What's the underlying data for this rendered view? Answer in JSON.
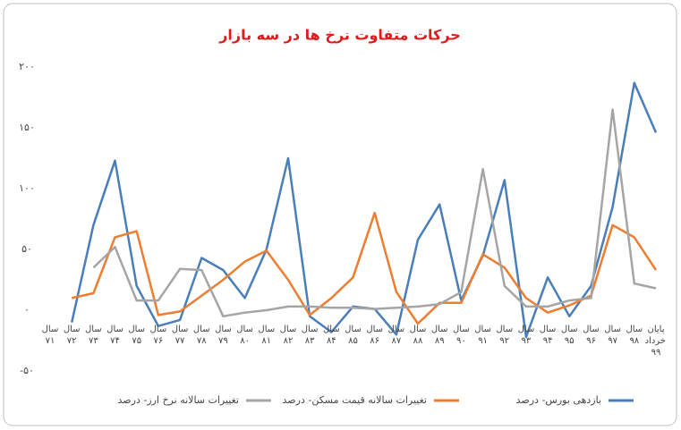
{
  "chart_data": {
    "type": "line",
    "title": "حرکات متفاوت نرخ ها در سه بازار",
    "categories": [
      "سال ۷۱",
      "سال ۷۲",
      "سال ۷۳",
      "سال ۷۴",
      "سال ۷۵",
      "سال ۷۶",
      "سال ۷۷",
      "سال ۷۸",
      "سال ۷۹",
      "سال ۸۰",
      "سال ۸۱",
      "سال ۸۲",
      "سال ۸۳",
      "سال ۸۴",
      "سال ۸۵",
      "سال ۸۶",
      "سال ۸۷",
      "سال ۸۸",
      "سال ۸۹",
      "سال ۹۰",
      "سال ۹۱",
      "سال ۹۲",
      "سال ۹۳",
      "سال ۹۴",
      "سال ۹۵",
      "سال ۹۶",
      "سال ۹۷",
      "سال ۹۸",
      "پایان خرداد ۹۹"
    ],
    "series": [
      {
        "name": "بازدهی بورس- درصد",
        "color": "#4a7ebb",
        "values": [
          null,
          -10,
          70,
          123,
          20,
          -13,
          -8,
          43,
          33,
          10,
          50,
          125,
          -5,
          -18,
          3,
          1,
          -20,
          58,
          87,
          8,
          45,
          107,
          -22,
          27,
          -5,
          20,
          85,
          187,
          146
        ]
      },
      {
        "name": "تغییرات سالانه قیمت مسکن- درصد",
        "color": "#ed7d31",
        "values": [
          null,
          10,
          14,
          60,
          65,
          -4,
          -1,
          12,
          25,
          40,
          49,
          25,
          -4,
          10,
          27,
          80,
          15,
          -11,
          6,
          6,
          46,
          35,
          10,
          -2,
          4,
          12,
          70,
          60,
          33
        ]
      },
      {
        "name": "تغییرات سالانه نرخ ارز- درصد",
        "color": "#a5a5a5",
        "values": [
          null,
          null,
          35,
          52,
          8,
          8,
          34,
          33,
          -5,
          -2,
          0,
          3,
          3,
          2,
          2,
          1,
          2,
          3,
          5,
          15,
          116,
          20,
          3,
          3,
          8,
          10,
          165,
          22,
          18
        ]
      }
    ],
    "ylim": [
      -50,
      200
    ],
    "yticks": [
      {
        "value": -50,
        "label": "-۵۰"
      },
      {
        "value": 0,
        "label": "۰"
      },
      {
        "value": 50,
        "label": "۵۰"
      },
      {
        "value": 100,
        "label": "۱۰۰"
      },
      {
        "value": 150,
        "label": "۱۵۰"
      },
      {
        "value": 200,
        "label": "۲۰۰"
      }
    ],
    "grid": false,
    "legend": "bottom"
  }
}
